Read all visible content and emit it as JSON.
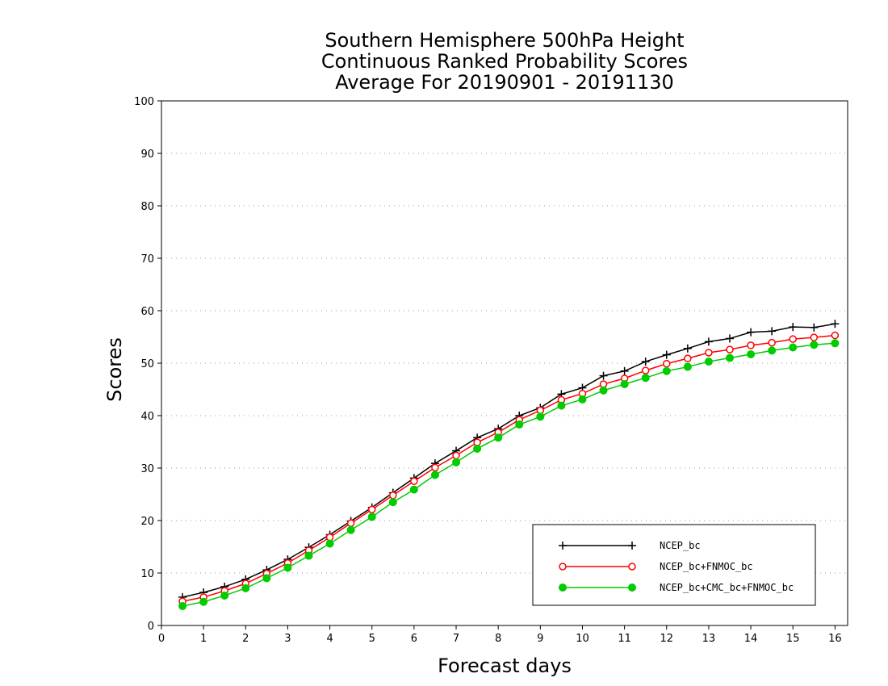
{
  "chart_data": {
    "type": "line",
    "title": [
      "Southern Hemisphere 500hPa Height",
      "Continuous Ranked Probability Scores",
      "Average For 20190901 - 20191130"
    ],
    "xlabel": "Forecast days",
    "ylabel": "Scores",
    "xlim": [
      0,
      16.3
    ],
    "ylim": [
      0,
      100
    ],
    "xticks": [
      "0",
      "1",
      "2",
      "3",
      "4",
      "5",
      "6",
      "7",
      "8",
      "9",
      "10",
      "11",
      "12",
      "13",
      "14",
      "15",
      "16"
    ],
    "yticks": [
      "0",
      "10",
      "20",
      "30",
      "40",
      "50",
      "60",
      "70",
      "80",
      "90",
      "100"
    ],
    "grid": true,
    "legend_position": "bottom-right",
    "x": [
      0.5,
      1,
      1.5,
      2,
      2.5,
      3,
      3.5,
      4,
      4.5,
      5,
      5.5,
      6,
      6.5,
      7,
      7.5,
      8,
      8.5,
      9,
      9.5,
      10,
      10.5,
      11,
      11.5,
      12,
      12.5,
      13,
      13.5,
      14,
      14.5,
      15,
      15.5,
      16
    ],
    "series": [
      {
        "name": "NCEP_bc",
        "color": "#000000",
        "marker": "plus",
        "values": [
          5.4,
          6.3,
          7.4,
          8.8,
          10.6,
          12.6,
          14.9,
          17.3,
          19.9,
          22.5,
          25.3,
          28.1,
          30.9,
          33.3,
          35.8,
          37.5,
          40.0,
          41.5,
          44.1,
          45.3,
          47.6,
          48.5,
          50.3,
          51.6,
          52.8,
          54.1,
          54.7,
          55.9,
          56.1,
          56.9,
          56.8,
          57.5
        ]
      },
      {
        "name": "NCEP_bc+FNMOC_bc",
        "color": "#ff0000",
        "marker": "open-circle",
        "values": [
          4.6,
          5.4,
          6.6,
          8.0,
          9.9,
          11.9,
          14.3,
          16.8,
          19.5,
          22.1,
          24.8,
          27.5,
          30.1,
          32.4,
          34.9,
          36.8,
          39.2,
          41.0,
          43.0,
          44.2,
          46.0,
          47.1,
          48.6,
          49.9,
          50.9,
          52.0,
          52.6,
          53.4,
          53.9,
          54.6,
          54.9,
          55.3
        ]
      },
      {
        "name": "NCEP_bc+CMC_bc+FNMOC_bc",
        "color": "#00cc00",
        "marker": "filled-circle",
        "values": [
          3.7,
          4.5,
          5.7,
          7.1,
          9.0,
          11.0,
          13.3,
          15.6,
          18.2,
          20.7,
          23.5,
          25.9,
          28.7,
          31.1,
          33.7,
          35.8,
          38.3,
          39.8,
          41.9,
          43.1,
          44.8,
          46.0,
          47.2,
          48.5,
          49.3,
          50.3,
          51.0,
          51.7,
          52.4,
          53.0,
          53.5,
          53.8
        ]
      }
    ]
  }
}
